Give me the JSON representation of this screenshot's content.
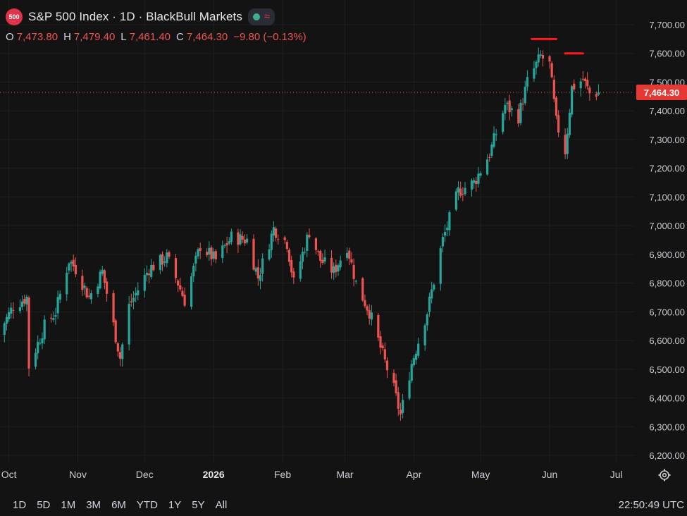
{
  "header": {
    "badge": "500",
    "title": "S&P 500 Index · 1D · BlackBull Markets",
    "status_icon": "green-dot-icon",
    "indicator_icon": "waves-icon"
  },
  "ohlc": {
    "o_label": "O",
    "o": "7,473.80",
    "h_label": "H",
    "h": "7,479.40",
    "l_label": "L",
    "l": "7,461.40",
    "c_label": "C",
    "c": "7,464.30",
    "change": "−9.80 (−0.13%)"
  },
  "last_price": "7,464.30",
  "colors": {
    "up": "#26a69a",
    "down": "#ef5350",
    "background": "#131313",
    "annotation": "#ff1a1a"
  },
  "ranges": [
    "1D",
    "5D",
    "1M",
    "3M",
    "6M",
    "YTD",
    "1Y",
    "5Y",
    "All"
  ],
  "clock": "22:50:49 UTC",
  "chart_data": {
    "type": "candlestick",
    "ylim": [
      6200,
      7750
    ],
    "y_ticks": [
      6200,
      6300,
      6400,
      6500,
      6600,
      6700,
      6800,
      6900,
      7000,
      7100,
      7200,
      7300,
      7400,
      7500,
      7600,
      7700
    ],
    "y_tick_labels": [
      "6,200.00",
      "6,300.00",
      "6,400.00",
      "6,500.00",
      "6,600.00",
      "6,700.00",
      "6,800.00",
      "6,900.00",
      "7,000.00",
      "7,100.00",
      "7,200.00",
      "7,300.00",
      "7,400.00",
      "7,500.00",
      "7,600.00",
      "7,700.00"
    ],
    "x_ticks": [
      {
        "label": "Oct",
        "date": "2025-10-01"
      },
      {
        "label": "Nov",
        "date": "2025-11-01"
      },
      {
        "label": "Dec",
        "date": "2025-12-01"
      },
      {
        "label": "2026",
        "date": "2026-01-01",
        "bold": true
      },
      {
        "label": "Feb",
        "date": "2026-02-01"
      },
      {
        "label": "Mar",
        "date": "2026-03-01"
      },
      {
        "label": "Apr",
        "date": "2026-04-01"
      },
      {
        "label": "May",
        "date": "2026-05-01"
      },
      {
        "label": "Jun",
        "date": "2026-06-01"
      },
      {
        "label": "Jul",
        "date": "2026-07-01"
      }
    ],
    "x_range": [
      "2025-09-27",
      "2026-07-09"
    ],
    "last_close": 7464.3,
    "anchors": [
      [
        "2025-09-26",
        6620
      ],
      [
        "2025-10-03",
        6720
      ],
      [
        "2025-10-09",
        6750
      ],
      [
        "2025-10-10",
        6510
      ],
      [
        "2025-10-17",
        6650
      ],
      [
        "2025-10-22",
        6700
      ],
      [
        "2025-10-28",
        6880
      ],
      [
        "2025-10-31",
        6850
      ],
      [
        "2025-11-06",
        6750
      ],
      [
        "2025-11-12",
        6840
      ],
      [
        "2025-11-20",
        6540
      ],
      [
        "2025-11-24",
        6720
      ],
      [
        "2025-12-03",
        6850
      ],
      [
        "2025-12-11",
        6890
      ],
      [
        "2025-12-16",
        6800
      ],
      [
        "2025-12-19",
        6740
      ],
      [
        "2025-12-26",
        6930
      ],
      [
        "2026-01-02",
        6880
      ],
      [
        "2026-01-09",
        6960
      ],
      [
        "2026-01-16",
        6950
      ],
      [
        "2026-01-21",
        6820
      ],
      [
        "2026-01-28",
        6990
      ],
      [
        "2026-02-03",
        6940
      ],
      [
        "2026-02-06",
        6800
      ],
      [
        "2026-02-13",
        6980
      ],
      [
        "2026-02-18",
        6880
      ],
      [
        "2026-02-24",
        6840
      ],
      [
        "2026-03-02",
        6930
      ],
      [
        "2026-03-06",
        6800
      ],
      [
        "2026-03-12",
        6700
      ],
      [
        "2026-03-18",
        6550
      ],
      [
        "2026-03-23",
        6430
      ],
      [
        "2026-03-26",
        6340
      ],
      [
        "2026-03-31",
        6520
      ],
      [
        "2026-04-07",
        6700
      ],
      [
        "2026-04-14",
        6950
      ],
      [
        "2026-04-21",
        7120
      ],
      [
        "2026-04-28",
        7150
      ],
      [
        "2026-05-05",
        7250
      ],
      [
        "2026-05-12",
        7420
      ],
      [
        "2026-05-18",
        7380
      ],
      [
        "2026-05-22",
        7500
      ],
      [
        "2026-05-28",
        7590
      ],
      [
        "2026-06-01",
        7560
      ],
      [
        "2026-06-04",
        7360
      ],
      [
        "2026-06-08",
        7260
      ],
      [
        "2026-06-11",
        7480
      ],
      [
        "2026-06-16",
        7510
      ],
      [
        "2026-06-19",
        7460
      ],
      [
        "2026-06-23",
        7464
      ]
    ],
    "annotations": [
      {
        "type": "hline",
        "from": "2026-05-24",
        "to": "2026-06-04",
        "y": 7650
      },
      {
        "type": "hline",
        "from": "2026-06-08",
        "to": "2026-06-16",
        "y": 7600
      }
    ]
  }
}
